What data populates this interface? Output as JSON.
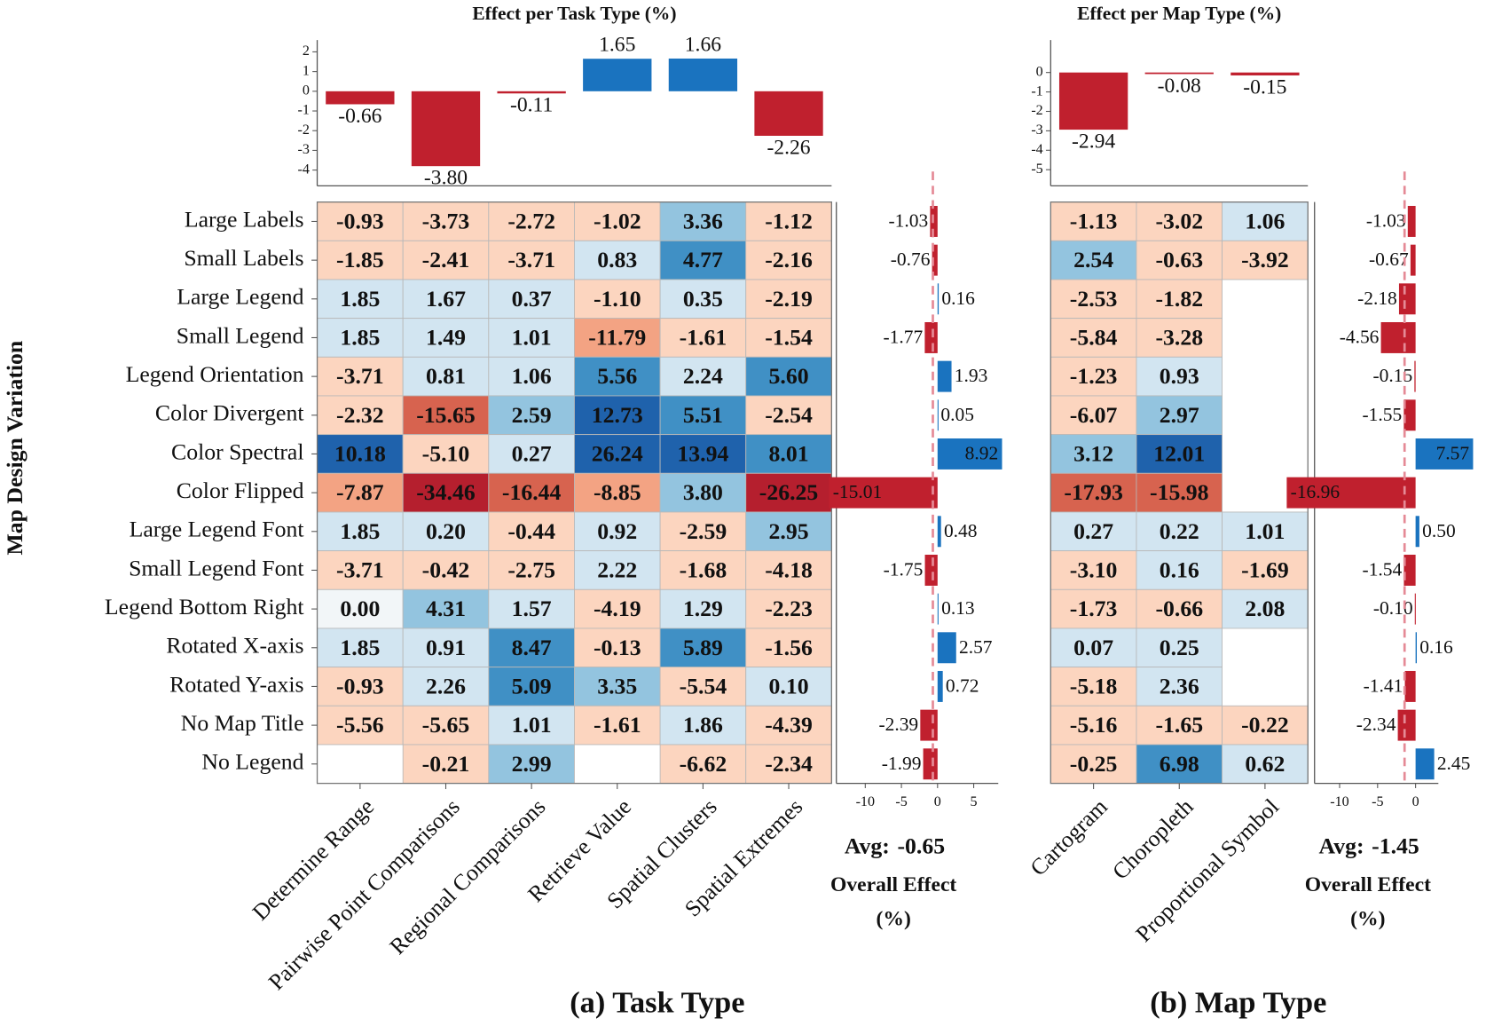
{
  "chart_data": [
    {
      "type": "bar",
      "title": "Effect per Task Type (%)",
      "values": [
        -0.66,
        -3.8,
        -0.11,
        1.65,
        1.66,
        -2.26
      ],
      "value_labels": [
        "-0.66",
        "-3.80",
        "-0.11",
        "1.65",
        "1.66",
        "-2.26"
      ],
      "ylim": [
        -4.8,
        2.6
      ],
      "yticks": [
        2,
        1,
        0,
        -1,
        -2,
        -3,
        -4
      ],
      "positive_color": "#1a73bf",
      "negative_color": "#c0202e"
    },
    {
      "type": "heatmap",
      "ylabel": "Map Design Variation",
      "xlabel": "(a) Task Type",
      "categories": [
        "Determine Range",
        "Pairwise Point Comparisons",
        "Regional Comparisons",
        "Retrieve Value",
        "Spatial Clusters",
        "Spatial Extremes"
      ],
      "rows": [
        "Large Labels",
        "Small Labels",
        "Large Legend",
        "Small Legend",
        "Legend Orientation",
        "Color Divergent",
        "Color Spectral",
        "Color Flipped",
        "Large Legend Font",
        "Small Legend Font",
        "Legend Bottom Right",
        "Rotated X-axis",
        "Rotated Y-axis",
        "No Map Title",
        "No Legend"
      ],
      "values": [
        [
          -0.93,
          -3.73,
          -2.72,
          -1.02,
          3.36,
          -1.12
        ],
        [
          -1.85,
          -2.41,
          -3.71,
          0.83,
          4.77,
          -2.16
        ],
        [
          1.85,
          1.67,
          0.37,
          -1.1,
          0.35,
          -2.19
        ],
        [
          1.85,
          1.49,
          1.01,
          -11.79,
          -1.61,
          -1.54
        ],
        [
          -3.71,
          0.81,
          1.06,
          5.56,
          2.24,
          5.6
        ],
        [
          -2.32,
          -15.65,
          2.59,
          12.73,
          5.51,
          -2.54
        ],
        [
          10.18,
          -5.1,
          0.27,
          26.24,
          13.94,
          8.01
        ],
        [
          -7.87,
          -34.46,
          -16.44,
          -8.85,
          3.8,
          -26.25
        ],
        [
          1.85,
          0.2,
          -0.44,
          0.92,
          -2.59,
          2.95
        ],
        [
          -3.71,
          -0.42,
          -2.75,
          2.22,
          -1.68,
          -4.18
        ],
        [
          0,
          4.31,
          1.57,
          -4.19,
          1.29,
          -2.23
        ],
        [
          1.85,
          0.91,
          8.47,
          -0.13,
          5.89,
          -1.56
        ],
        [
          -0.93,
          2.26,
          5.09,
          3.35,
          -5.54,
          0.1
        ],
        [
          -5.56,
          -5.65,
          1.01,
          -1.61,
          1.86,
          -4.39
        ],
        [
          null,
          -0.21,
          2.99,
          null,
          -6.62,
          -2.34
        ]
      ],
      "value_labels": [
        [
          "-0.93",
          "-3.73",
          "-2.72",
          "-1.02",
          "3.36",
          "-1.12"
        ],
        [
          "-1.85",
          "-2.41",
          "-3.71",
          "0.83",
          "4.77",
          "-2.16"
        ],
        [
          "1.85",
          "1.67",
          "0.37",
          "-1.10",
          "0.35",
          "-2.19"
        ],
        [
          "1.85",
          "1.49",
          "1.01",
          "-11.79",
          "-1.61",
          "-1.54"
        ],
        [
          "-3.71",
          "0.81",
          "1.06",
          "5.56",
          "2.24",
          "5.60"
        ],
        [
          "-2.32",
          "-15.65",
          "2.59",
          "12.73",
          "5.51",
          "-2.54"
        ],
        [
          "10.18",
          "-5.10",
          "0.27",
          "26.24",
          "13.94",
          "8.01"
        ],
        [
          "-7.87",
          "-34.46",
          "-16.44",
          "-8.85",
          "3.80",
          "-26.25"
        ],
        [
          "1.85",
          "0.20",
          "-0.44",
          "0.92",
          "-2.59",
          "2.95"
        ],
        [
          "-3.71",
          "-0.42",
          "-2.75",
          "2.22",
          "-1.68",
          "-4.18"
        ],
        [
          "0.00",
          "4.31",
          "1.57",
          "-4.19",
          "1.29",
          "-2.23"
        ],
        [
          "1.85",
          "0.91",
          "8.47",
          "-0.13",
          "5.89",
          "-1.56"
        ],
        [
          "-0.93",
          "2.26",
          "5.09",
          "3.35",
          "-5.54",
          "0.10"
        ],
        [
          "-5.56",
          "-5.65",
          "1.01",
          "-1.61",
          "1.86",
          "-4.39"
        ],
        [
          null,
          "-0.21",
          "2.99",
          null,
          "-6.62",
          "-2.34"
        ]
      ],
      "colormap": "RdBu"
    },
    {
      "type": "hbar",
      "xlabel": "Overall Effect (%)",
      "average_label": "Avg:",
      "average": -0.65,
      "values": [
        -1.03,
        -0.76,
        0.16,
        -1.77,
        1.93,
        0.05,
        8.92,
        -15.01,
        0.48,
        -1.75,
        0.13,
        2.57,
        0.72,
        -2.39,
        -1.99
      ],
      "value_labels": [
        "-1.03",
        "-0.76",
        "0.16",
        "-1.77",
        "1.93",
        "0.05",
        "8.92",
        "-15.01",
        "0.48",
        "-1.75",
        "0.13",
        "2.57",
        "0.72",
        "-2.39",
        "-1.99"
      ],
      "xlim": [
        -14,
        8.4
      ],
      "xticks": [
        -10,
        -5,
        0,
        5
      ],
      "positive_color": "#1a73bf",
      "negative_color": "#c0202e"
    },
    {
      "type": "bar",
      "title": "Effect per Map Type (%)",
      "values": [
        -2.94,
        -0.08,
        -0.15
      ],
      "value_labels": [
        "-2.94",
        "-0.08",
        "-0.15"
      ],
      "ylim": [
        -5.83,
        1.67
      ],
      "yticks": [
        0,
        -1,
        -2,
        -3,
        -4,
        -5
      ],
      "positive_color": "#1a73bf",
      "negative_color": "#c0202e"
    },
    {
      "type": "heatmap",
      "xlabel": "(b) Map Type",
      "categories": [
        "Cartogram",
        "Choropleth",
        "Proportional Symbol"
      ],
      "values": [
        [
          -1.13,
          -3.02,
          1.06
        ],
        [
          2.54,
          -0.63,
          -3.92
        ],
        [
          -2.53,
          -1.82,
          null
        ],
        [
          -5.84,
          -3.28,
          null
        ],
        [
          -1.23,
          0.93,
          null
        ],
        [
          -6.07,
          2.97,
          null
        ],
        [
          3.12,
          12.01,
          null
        ],
        [
          -17.93,
          -15.98,
          null
        ],
        [
          0.27,
          0.22,
          1.01
        ],
        [
          -3.1,
          0.16,
          -1.69
        ],
        [
          -1.73,
          -0.66,
          2.08
        ],
        [
          0.07,
          0.25,
          null
        ],
        [
          -5.18,
          2.36,
          null
        ],
        [
          -5.16,
          -1.65,
          -0.22
        ],
        [
          -0.25,
          6.98,
          0.62
        ]
      ],
      "value_labels": [
        [
          "-1.13",
          "-3.02",
          "1.06"
        ],
        [
          "2.54",
          "-0.63",
          "-3.92"
        ],
        [
          "-2.53",
          "-1.82",
          null
        ],
        [
          "-5.84",
          "-3.28",
          null
        ],
        [
          "-1.23",
          "0.93",
          null
        ],
        [
          "-6.07",
          "2.97",
          null
        ],
        [
          "3.12",
          "12.01",
          null
        ],
        [
          "-17.93",
          "-15.98",
          null
        ],
        [
          "0.27",
          "0.22",
          "1.01"
        ],
        [
          "-3.10",
          "0.16",
          "-1.69"
        ],
        [
          "-1.73",
          "-0.66",
          "2.08"
        ],
        [
          "0.07",
          "0.25",
          null
        ],
        [
          "-5.18",
          "2.36",
          null
        ],
        [
          "-5.16",
          "-1.65",
          "-0.22"
        ],
        [
          "-0.25",
          "6.98",
          "0.62"
        ]
      ],
      "colormap": "RdBu"
    },
    {
      "type": "hbar",
      "xlabel": "Overall Effect (%)",
      "average_label": "Avg:",
      "average": -1.45,
      "values": [
        -1.03,
        -0.67,
        -2.18,
        -4.56,
        -0.15,
        -1.55,
        7.57,
        -16.96,
        0.5,
        -1.54,
        -0.1,
        0.16,
        -1.41,
        -2.34,
        2.45
      ],
      "value_labels": [
        "-1.03",
        "-0.67",
        "-2.18",
        "-4.56",
        "-0.15",
        "-1.55",
        "7.57",
        "-16.96",
        "0.50",
        "-1.54",
        "-0.10",
        "0.16",
        "-1.41",
        "-2.34",
        "2.45"
      ],
      "xlim": [
        -13.3,
        3
      ],
      "xticks": [
        -10,
        -5,
        0
      ],
      "positive_color": "#1a73bf",
      "negative_color": "#c0202e"
    }
  ]
}
